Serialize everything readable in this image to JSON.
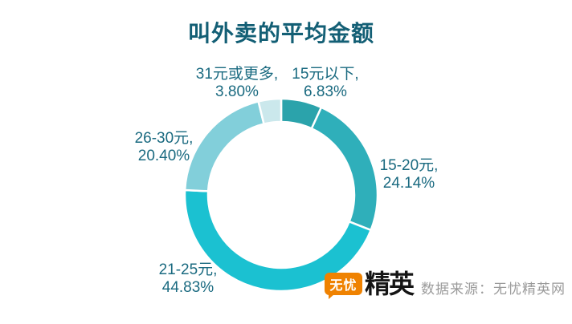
{
  "chart_data": {
    "type": "pie",
    "subtype": "donut",
    "title": "叫外卖的平均金额",
    "categories": [
      "15元以下",
      "15-20元",
      "21-25元",
      "26-30元",
      "31元或更多"
    ],
    "values": [
      6.83,
      24.14,
      44.83,
      20.4,
      3.8
    ],
    "value_labels": [
      "6.83%",
      "24.14%",
      "44.83%",
      "20.40%",
      "3.80%"
    ],
    "colors": [
      "#2BA3AB",
      "#2FAFBA",
      "#1BC1D1",
      "#82CFDA",
      "#CBE8EC"
    ],
    "unit": "%",
    "start_angle_deg": 0,
    "direction": "clockwise",
    "legend": "none",
    "label_style": "category-and-percent placed around donut",
    "title_color": "#135F75",
    "label_color": "#1A6A80"
  },
  "branding": {
    "logo_bubble_text": "无忧",
    "logo_main_text": "精英",
    "logo_bubble_color": "#EF8201",
    "source_text": "数据来源：无忧精英网",
    "source_color": "#9B9B9B"
  }
}
